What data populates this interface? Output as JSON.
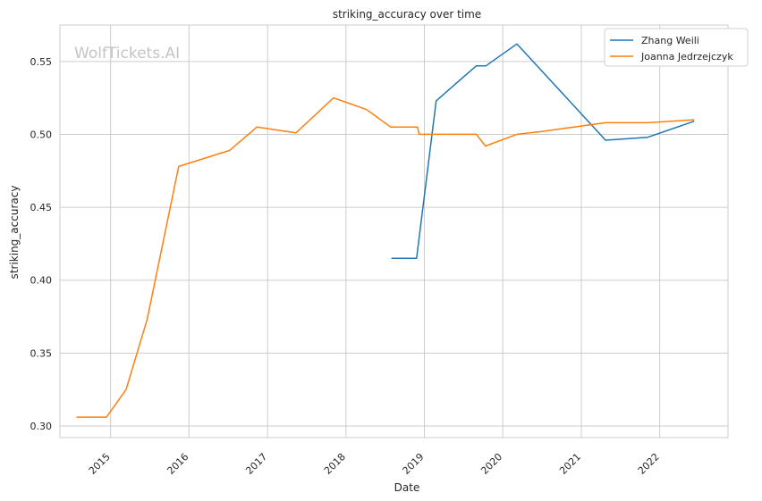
{
  "colors": {
    "zhang": "#1f77b4",
    "joanna": "#ff7f0e",
    "grid": "#cccccc",
    "frame": "#cccccc"
  },
  "watermark": "WolfTickets.AI",
  "chart_data": {
    "type": "line",
    "title": "striking_accuracy over time",
    "xlabel": "Date",
    "ylabel": "striking_accuracy",
    "xlim": [
      "2014-05-10",
      "2022-11-15"
    ],
    "ylim": [
      0.292,
      0.575
    ],
    "yticks": [
      0.3,
      0.35,
      0.4,
      0.45,
      0.5,
      0.55
    ],
    "ytick_labels": [
      "0.30",
      "0.35",
      "0.40",
      "0.45",
      "0.50",
      "0.55"
    ],
    "xticks": [
      "2015-01-01",
      "2016-01-01",
      "2017-01-01",
      "2018-01-01",
      "2019-01-01",
      "2020-01-01",
      "2021-01-01",
      "2022-01-01"
    ],
    "xtick_labels": [
      "2015",
      "2016",
      "2017",
      "2018",
      "2019",
      "2020",
      "2021",
      "2022"
    ],
    "grid": true,
    "legend_position": "top-right",
    "series": [
      {
        "name": "Zhang Weili",
        "color_key": "zhang",
        "x": [
          "2018-08-01",
          "2018-11-26",
          "2019-02-25",
          "2019-08-31",
          "2019-10-15",
          "2020-03-07",
          "2021-04-24",
          "2021-11-06",
          "2022-06-11"
        ],
        "y": [
          0.415,
          0.415,
          0.523,
          0.547,
          0.547,
          0.562,
          0.496,
          0.498,
          0.509
        ]
      },
      {
        "name": "Joanna Jedrzejczyk",
        "color_key": "joanna",
        "x": [
          "2014-07-26",
          "2014-12-13",
          "2015-03-14",
          "2015-06-20",
          "2015-11-14",
          "2016-07-08",
          "2016-11-12",
          "2017-05-13",
          "2017-11-04",
          "2018-04-07",
          "2018-07-28",
          "2018-11-30",
          "2018-12-08",
          "2019-08-31",
          "2019-10-12",
          "2020-03-07",
          "2020-07-01",
          "2021-04-24",
          "2021-11-06",
          "2022-06-11"
        ],
        "y": [
          0.306,
          0.306,
          0.325,
          0.373,
          0.478,
          0.489,
          0.505,
          0.501,
          0.525,
          0.517,
          0.505,
          0.505,
          0.5,
          0.5,
          0.492,
          0.5,
          0.502,
          0.508,
          0.508,
          0.51
        ]
      }
    ]
  }
}
